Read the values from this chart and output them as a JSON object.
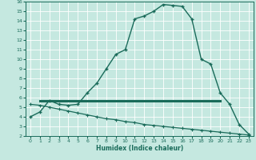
{
  "xlabel": "Humidex (Indice chaleur)",
  "xlim": [
    -0.5,
    23.5
  ],
  "ylim": [
    2,
    16
  ],
  "xticks": [
    0,
    1,
    2,
    3,
    4,
    5,
    6,
    7,
    8,
    9,
    10,
    11,
    12,
    13,
    14,
    15,
    16,
    17,
    18,
    19,
    20,
    21,
    22,
    23
  ],
  "yticks": [
    2,
    3,
    4,
    5,
    6,
    7,
    8,
    9,
    10,
    11,
    12,
    13,
    14,
    15,
    16
  ],
  "bg_color": "#c5e8e0",
  "line_color": "#1a6b5a",
  "line1_x": [
    0,
    1,
    2,
    3,
    4,
    5,
    6,
    7,
    8,
    9,
    10,
    11,
    12,
    13,
    14,
    15,
    16,
    17,
    18,
    19,
    20,
    21,
    22,
    23
  ],
  "line1_y": [
    4.0,
    4.5,
    5.7,
    5.3,
    5.2,
    5.3,
    6.5,
    7.5,
    9.0,
    10.5,
    11.0,
    14.2,
    14.5,
    15.0,
    15.7,
    15.6,
    15.5,
    14.2,
    10.0,
    9.5,
    6.5,
    5.3,
    3.2,
    2.2
  ],
  "line2_x": [
    1,
    20
  ],
  "line2_y": [
    5.7,
    5.7
  ],
  "line3_x": [
    0,
    1,
    2,
    3,
    4,
    5,
    6,
    7,
    8,
    9,
    10,
    11,
    12,
    13,
    14,
    15,
    16,
    17,
    18,
    19,
    20,
    21,
    22,
    23
  ],
  "line3_y": [
    5.3,
    5.2,
    5.0,
    4.8,
    4.6,
    4.4,
    4.2,
    4.0,
    3.8,
    3.7,
    3.5,
    3.4,
    3.2,
    3.1,
    3.0,
    2.9,
    2.8,
    2.7,
    2.6,
    2.5,
    2.4,
    2.3,
    2.2,
    2.1
  ]
}
